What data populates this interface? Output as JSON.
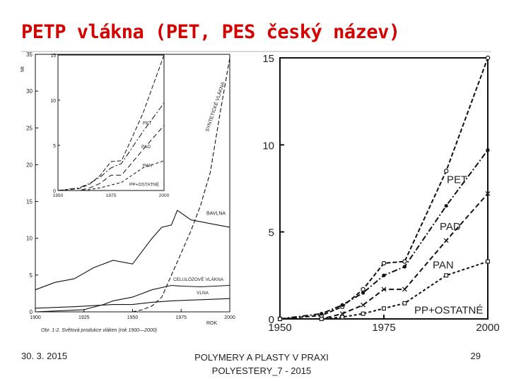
{
  "slide": {
    "title": "PETP vlákna (PET, PES český název)",
    "date": "30. 3. 2015",
    "course_line1": "POLYMERY A PLASTY V PRAXI",
    "course_line2": "POLYESTERY_7 - 2015",
    "page_number": "29"
  },
  "colors": {
    "title": "#d40000",
    "ink": "#111111"
  },
  "chart_data": [
    {
      "id": "left-main",
      "type": "line",
      "ylabel": "Mt",
      "xlabel": "ROK",
      "xlim": [
        1900,
        2000
      ],
      "ylim": [
        0,
        35
      ],
      "x_ticks": [
        "1900",
        "1925",
        "1950",
        "1975",
        "2000"
      ],
      "y_ticks": [
        "0",
        "5",
        "10",
        "15",
        "20",
        "25",
        "30",
        "35"
      ],
      "caption": "Obr. 1-2. Světová produkce vláken (rok 1900—2000)",
      "series": [
        {
          "name": "BAVLNA",
          "dash": "solid",
          "points": [
            [
              1900,
              3
            ],
            [
              1910,
              4
            ],
            [
              1920,
              4.5
            ],
            [
              1930,
              6
            ],
            [
              1940,
              7
            ],
            [
              1950,
              6.5
            ],
            [
              1960,
              10
            ],
            [
              1965,
              11.5
            ],
            [
              1970,
              11.8
            ],
            [
              1973,
              13.8
            ],
            [
              1980,
              12.5
            ],
            [
              1990,
              12
            ],
            [
              2000,
              11.5
            ]
          ]
        },
        {
          "name": "CELULÓZOVÉ VLÁKNA",
          "dash": "solid",
          "points": [
            [
              1900,
              0
            ],
            [
              1925,
              0.3
            ],
            [
              1935,
              1
            ],
            [
              1940,
              1.5
            ],
            [
              1950,
              2
            ],
            [
              1960,
              3
            ],
            [
              1970,
              3.6
            ],
            [
              1975,
              3.5
            ],
            [
              1985,
              3.4
            ],
            [
              2000,
              3.6
            ]
          ]
        },
        {
          "name": "VLNA",
          "dash": "solid",
          "points": [
            [
              1900,
              0.5
            ],
            [
              1920,
              0.7
            ],
            [
              1940,
              1
            ],
            [
              1950,
              1
            ],
            [
              1960,
              1.3
            ],
            [
              1970,
              1.5
            ],
            [
              1980,
              1.6
            ],
            [
              1990,
              1.7
            ],
            [
              2000,
              1.8
            ]
          ]
        },
        {
          "name": "SYNTETICKÉ VLÁKNA",
          "dash": "dash",
          "points": [
            [
              1940,
              0
            ],
            [
              1950,
              0
            ],
            [
              1955,
              0.3
            ],
            [
              1960,
              0.8
            ],
            [
              1965,
              2
            ],
            [
              1970,
              5
            ],
            [
              1975,
              8
            ],
            [
              1980,
              11
            ],
            [
              1985,
              14.5
            ],
            [
              1990,
              19
            ],
            [
              1995,
              27
            ],
            [
              2000,
              34.5
            ]
          ]
        }
      ],
      "annotations": [
        "SYNTETICKÉ VLÁKNA",
        "BAVLNA",
        "CELULÓZOVÉ VLÁKNA",
        "VLNA"
      ]
    },
    {
      "id": "left-inset",
      "type": "line",
      "xlim": [
        1950,
        2000
      ],
      "ylim": [
        0,
        15
      ],
      "x_ticks": [
        "1950",
        "1975",
        "2000"
      ],
      "y_ticks": [
        "0",
        "5",
        "10",
        "15"
      ],
      "series": [
        {
          "name": "PET",
          "points": [
            [
              1950,
              0
            ],
            [
              1960,
              0.2
            ],
            [
              1965,
              0.7
            ],
            [
              1970,
              1.7
            ],
            [
              1975,
              3.2
            ],
            [
              1980,
              3.3
            ],
            [
              1990,
              8.5
            ],
            [
              2000,
              15
            ]
          ]
        },
        {
          "name": "PAD",
          "points": [
            [
              1950,
              0
            ],
            [
              1960,
              0.3
            ],
            [
              1965,
              0.8
            ],
            [
              1970,
              1.5
            ],
            [
              1975,
              2.5
            ],
            [
              1980,
              3
            ],
            [
              1990,
              6.5
            ],
            [
              2000,
              9.7
            ]
          ]
        },
        {
          "name": "PAN",
          "points": [
            [
              1950,
              0
            ],
            [
              1960,
              0
            ],
            [
              1965,
              0.3
            ],
            [
              1970,
              0.8
            ],
            [
              1975,
              1.7
            ],
            [
              1980,
              1.7
            ],
            [
              1990,
              4.5
            ],
            [
              2000,
              7.2
            ]
          ]
        },
        {
          "name": "PP+OSTATNÉ",
          "points": [
            [
              1950,
              0
            ],
            [
              1960,
              0
            ],
            [
              1965,
              0.1
            ],
            [
              1970,
              0.3
            ],
            [
              1975,
              0.6
            ],
            [
              1980,
              0.9
            ],
            [
              1990,
              2.5
            ],
            [
              2000,
              3.3
            ]
          ]
        }
      ],
      "annotations": [
        "PET",
        "PAD",
        "PAN",
        "PP+OSTATNÉ"
      ]
    },
    {
      "id": "right",
      "type": "line",
      "xlim": [
        1950,
        2000
      ],
      "ylim": [
        0,
        15
      ],
      "x_ticks": [
        "1950",
        "1975",
        "2000"
      ],
      "y_ticks": [
        "0",
        "5",
        "10",
        "15"
      ],
      "series": [
        {
          "name": "PET",
          "marker": "circle",
          "points": [
            [
              1950,
              0
            ],
            [
              1960,
              0.2
            ],
            [
              1965,
              0.7
            ],
            [
              1970,
              1.7
            ],
            [
              1975,
              3.2
            ],
            [
              1980,
              3.3
            ],
            [
              1990,
              8.5
            ],
            [
              2000,
              15
            ]
          ]
        },
        {
          "name": "PAD",
          "marker": "dot",
          "points": [
            [
              1950,
              0
            ],
            [
              1960,
              0.3
            ],
            [
              1965,
              0.8
            ],
            [
              1970,
              1.5
            ],
            [
              1975,
              2.5
            ],
            [
              1980,
              3
            ],
            [
              1990,
              6.5
            ],
            [
              2000,
              9.7
            ]
          ]
        },
        {
          "name": "PAN",
          "marker": "x",
          "points": [
            [
              1950,
              0
            ],
            [
              1960,
              0
            ],
            [
              1965,
              0.3
            ],
            [
              1970,
              0.8
            ],
            [
              1975,
              1.7
            ],
            [
              1980,
              1.7
            ],
            [
              1990,
              4.5
            ],
            [
              2000,
              7.2
            ]
          ]
        },
        {
          "name": "PP+OSTATNÉ",
          "marker": "square",
          "points": [
            [
              1950,
              0
            ],
            [
              1960,
              0
            ],
            [
              1965,
              0.1
            ],
            [
              1970,
              0.3
            ],
            [
              1975,
              0.6
            ],
            [
              1980,
              0.9
            ],
            [
              1990,
              2.5
            ],
            [
              2000,
              3.3
            ]
          ]
        }
      ],
      "annotations": [
        "PET",
        "PAD",
        "PAN",
        "PP+OSTATNÉ"
      ]
    }
  ]
}
